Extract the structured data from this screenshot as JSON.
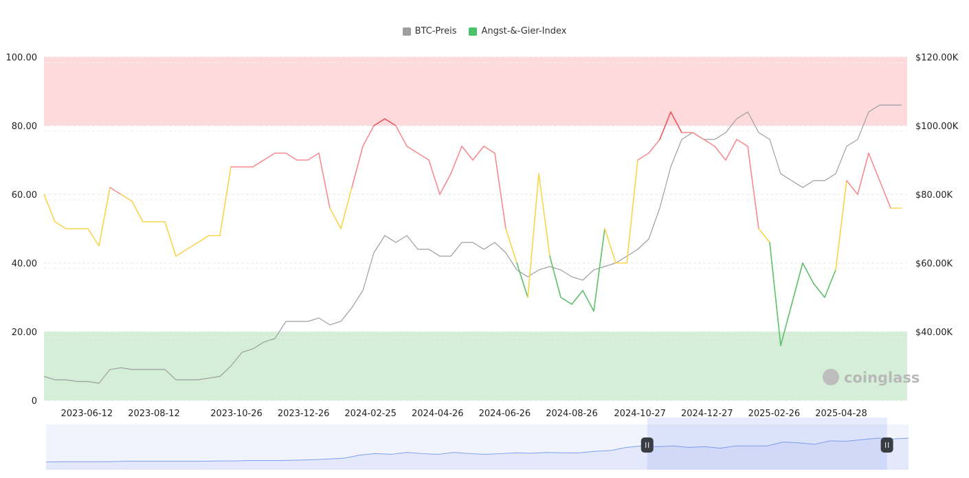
{
  "legend": [
    {
      "label": "BTC-Preis",
      "color": "#9e9e9e"
    },
    {
      "label": "Angst-&-Gier-Index",
      "color": "#4cc16a"
    }
  ],
  "watermark": "coinglass",
  "chart_data": {
    "type": "line",
    "title": "",
    "xlabel": "",
    "ylabel": "",
    "ylim": [
      0,
      100
    ],
    "y2lim": [
      20000,
      120000
    ],
    "grid": true,
    "legend_position": "top",
    "y_ticks": [
      "0",
      "20.00",
      "40.00",
      "60.00",
      "80.00",
      "100.00"
    ],
    "y2_ticks": [
      "$40.00K",
      "$60.00K",
      "$80.00K",
      "$100.00K",
      "$120.00K"
    ],
    "x_ticks": [
      "2023-06-12",
      "2023-08-12",
      "2023-10-26",
      "2023-12-26",
      "2024-02-25",
      "2024-04-26",
      "2024-06-26",
      "2024-08-26",
      "2024-10-27",
      "2024-12-27",
      "2025-02-26",
      "2025-04-28"
    ],
    "xlim": [
      "2023-05-04",
      "2025-06-27"
    ],
    "zones": [
      {
        "from": 80,
        "to": 100,
        "color": "#ffdadd"
      },
      {
        "from": 0,
        "to": 20,
        "color": "#d5eed8"
      }
    ],
    "index_colors": {
      "extreme_greed": "#f0505a",
      "greed": "#f88a8f",
      "neutral": "#f8d548",
      "fear": "#5cbf6a"
    },
    "x": [
      "2023-05-04",
      "2023-05-14",
      "2023-05-24",
      "2023-06-03",
      "2023-06-13",
      "2023-06-23",
      "2023-07-03",
      "2023-07-13",
      "2023-07-23",
      "2023-08-02",
      "2023-08-12",
      "2023-08-22",
      "2023-09-01",
      "2023-09-11",
      "2023-09-21",
      "2023-10-01",
      "2023-10-11",
      "2023-10-21",
      "2023-10-31",
      "2023-11-10",
      "2023-11-20",
      "2023-11-30",
      "2023-12-10",
      "2023-12-20",
      "2023-12-30",
      "2024-01-09",
      "2024-01-19",
      "2024-01-29",
      "2024-02-08",
      "2024-02-18",
      "2024-02-28",
      "2024-03-09",
      "2024-03-19",
      "2024-03-29",
      "2024-04-08",
      "2024-04-18",
      "2024-04-28",
      "2024-05-08",
      "2024-05-18",
      "2024-05-28",
      "2024-06-07",
      "2024-06-17",
      "2024-06-27",
      "2024-07-07",
      "2024-07-17",
      "2024-07-27",
      "2024-08-06",
      "2024-08-16",
      "2024-08-26",
      "2024-09-05",
      "2024-09-15",
      "2024-09-25",
      "2024-10-05",
      "2024-10-15",
      "2024-10-25",
      "2024-11-04",
      "2024-11-14",
      "2024-11-24",
      "2024-12-04",
      "2024-12-14",
      "2024-12-24",
      "2025-01-03",
      "2025-01-13",
      "2025-01-23",
      "2025-02-02",
      "2025-02-12",
      "2025-02-22",
      "2025-03-04",
      "2025-03-14",
      "2025-03-24",
      "2025-04-03",
      "2025-04-13",
      "2025-04-23",
      "2025-05-03",
      "2025-05-13",
      "2025-05-23",
      "2025-06-02",
      "2025-06-12",
      "2025-06-22"
    ],
    "series": [
      {
        "name": "Angst-&-Gier-Index",
        "axis": "left",
        "values": [
          60,
          52,
          50,
          50,
          50,
          45,
          62,
          60,
          58,
          52,
          52,
          52,
          42,
          44,
          46,
          48,
          48,
          68,
          68,
          68,
          70,
          72,
          72,
          70,
          70,
          72,
          56,
          50,
          62,
          74,
          80,
          82,
          80,
          74,
          72,
          70,
          60,
          66,
          74,
          70,
          74,
          72,
          50,
          40,
          30,
          66,
          42,
          30,
          28,
          32,
          26,
          50,
          40,
          40,
          70,
          72,
          76,
          84,
          78,
          78,
          76,
          74,
          70,
          76,
          74,
          50,
          46,
          16,
          28,
          40,
          34,
          30,
          38,
          64,
          60,
          72,
          64,
          56,
          56
        ]
      },
      {
        "name": "BTC-Preis",
        "axis": "right",
        "color": "#9e9e9e",
        "values": [
          27000,
          26000,
          26000,
          25500,
          25500,
          25000,
          29000,
          29500,
          29000,
          29000,
          29000,
          29000,
          26000,
          26000,
          26000,
          26500,
          27000,
          30000,
          34000,
          35000,
          37000,
          38000,
          43000,
          43000,
          43000,
          44000,
          42000,
          43000,
          47000,
          52000,
          63000,
          68000,
          66000,
          68000,
          64000,
          64000,
          62000,
          62000,
          66000,
          66000,
          64000,
          66000,
          63000,
          58000,
          56000,
          58000,
          59000,
          58000,
          56000,
          55000,
          58000,
          59000,
          60000,
          62000,
          64000,
          67000,
          76000,
          88000,
          96000,
          98000,
          96000,
          96000,
          98000,
          102000,
          104000,
          98000,
          96000,
          86000,
          84000,
          82000,
          84000,
          84000,
          86000,
          94000,
          96000,
          104000,
          106000,
          106000,
          106000
        ]
      }
    ]
  },
  "navigator": {
    "color": "#7f9ef0",
    "values": [
      20,
      21,
      21,
      21,
      21,
      22,
      22,
      22,
      22,
      22,
      22,
      23,
      23,
      24,
      24,
      24,
      25,
      26,
      28,
      30,
      38,
      42,
      40,
      45,
      42,
      40,
      45,
      42,
      40,
      42,
      44,
      43,
      45,
      44,
      44,
      48,
      50,
      58,
      62,
      60,
      62,
      58,
      60,
      56,
      62,
      62,
      62,
      72,
      70,
      66,
      75,
      74,
      78,
      82,
      80,
      82
    ],
    "selected_range": [
      0.697,
      0.975
    ]
  }
}
